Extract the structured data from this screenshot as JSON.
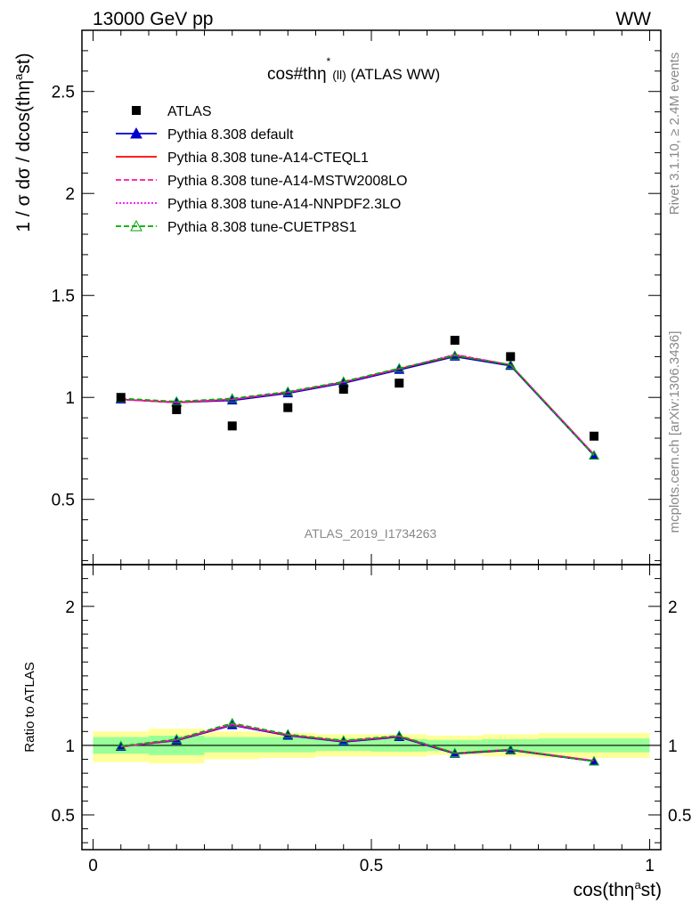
{
  "header": {
    "left": "13000 GeV pp",
    "right": "WW"
  },
  "plot_title": {
    "main": "cos#thη",
    "sup": "*",
    "sub": "(ll)",
    "rest": " (ATLAS WW)"
  },
  "side_label_top": "Rivet 3.1.10, ≥ 2.4M events",
  "side_label_bottom": "mcplots.cern.ch [arXiv:1306.3436]",
  "watermark": "ATLAS_2019_I1734263",
  "chart_data": [
    {
      "type": "line",
      "ylabel": "1 / σ dσ / dcos(thη^ast)",
      "ylim": [
        0.18,
        2.8
      ],
      "yticks": [
        0.5,
        1,
        1.5,
        2,
        2.5
      ],
      "ytick_labels": [
        "0.5",
        "1",
        "1.5",
        "2",
        "2.5"
      ],
      "x": [
        0.05,
        0.15,
        0.25,
        0.35,
        0.45,
        0.55,
        0.65,
        0.75,
        0.9
      ],
      "data": {
        "name": "ATLAS",
        "values": [
          1.0,
          0.94,
          0.86,
          0.95,
          1.04,
          1.07,
          1.28,
          1.2,
          0.81
        ]
      },
      "series": [
        {
          "name": "Pythia 8.308 default",
          "color": "#0000cc",
          "style": "solid",
          "marker": "triangle",
          "values": [
            0.99,
            0.975,
            0.985,
            1.02,
            1.07,
            1.135,
            1.2,
            1.155,
            0.715
          ]
        },
        {
          "name": "Pythia 8.308 tune-A14-CTEQL1",
          "color": "#ff0000",
          "style": "solid",
          "marker": "none",
          "values": [
            0.99,
            0.975,
            0.99,
            1.025,
            1.075,
            1.14,
            1.205,
            1.16,
            0.72
          ]
        },
        {
          "name": "Pythia 8.308 tune-A14-MSTW2008LO",
          "color": "#ff1493",
          "style": "dashed",
          "marker": "none",
          "values": [
            0.99,
            0.975,
            0.99,
            1.025,
            1.075,
            1.14,
            1.21,
            1.16,
            0.72
          ]
        },
        {
          "name": "Pythia 8.308 tune-A14-NNPDF2.3LO",
          "color": "#ff00ff",
          "style": "dotted",
          "marker": "none",
          "values": [
            0.99,
            0.978,
            0.99,
            1.025,
            1.075,
            1.14,
            1.21,
            1.16,
            0.72
          ]
        },
        {
          "name": "Pythia 8.308 tune-CUETP8S1",
          "color": "#00aa00",
          "style": "dashed",
          "marker": "open-triangle",
          "values": [
            0.995,
            0.98,
            0.995,
            1.028,
            1.078,
            1.143,
            1.205,
            1.16,
            0.715
          ]
        }
      ],
      "legend": "top-left"
    },
    {
      "type": "line",
      "xlabel": "cos(thη^ast)",
      "ylabel": "Ratio to ATLAS",
      "xlim": [
        -0.02,
        1.02
      ],
      "ylim": [
        0.25,
        2.3
      ],
      "xticks": [
        0,
        0.5,
        1
      ],
      "xtick_labels": [
        "0",
        "0.5",
        "1"
      ],
      "yticks": [
        0.5,
        1,
        2
      ],
      "ytick_labels": [
        "0.5",
        "1",
        "2"
      ],
      "bin_edges": [
        0,
        0.1,
        0.2,
        0.3,
        0.4,
        0.5,
        0.6,
        0.7,
        0.8,
        1.0
      ],
      "band_inner": [
        [
          0.94,
          1.06
        ],
        [
          0.93,
          1.07
        ],
        [
          0.95,
          1.06
        ],
        [
          0.95,
          1.06
        ],
        [
          0.96,
          1.05
        ],
        [
          0.955,
          1.045
        ],
        [
          0.96,
          1.04
        ],
        [
          0.955,
          1.045
        ],
        [
          0.95,
          1.05
        ]
      ],
      "band_outer": [
        [
          0.88,
          1.1
        ],
        [
          0.87,
          1.12
        ],
        [
          0.9,
          1.1
        ],
        [
          0.91,
          1.09
        ],
        [
          0.92,
          1.08
        ],
        [
          0.92,
          1.08
        ],
        [
          0.93,
          1.07
        ],
        [
          0.92,
          1.08
        ],
        [
          0.91,
          1.09
        ]
      ],
      "ratio_series": [
        {
          "name": "Pythia 8.308 default",
          "values": [
            0.99,
            1.035,
            1.145,
            1.07,
            1.025,
            1.06,
            0.94,
            0.965,
            0.885
          ]
        },
        {
          "name": "Pythia 8.308 tune-A14-CTEQL1",
          "values": [
            0.99,
            1.04,
            1.15,
            1.075,
            1.03,
            1.065,
            0.945,
            0.97,
            0.89
          ]
        },
        {
          "name": "Pythia 8.308 tune-A14-MSTW2008LO",
          "values": [
            0.99,
            1.04,
            1.15,
            1.075,
            1.03,
            1.065,
            0.945,
            0.97,
            0.89
          ]
        },
        {
          "name": "Pythia 8.308 tune-A14-NNPDF2.3LO",
          "values": [
            0.99,
            1.04,
            1.15,
            1.075,
            1.03,
            1.065,
            0.945,
            0.97,
            0.89
          ]
        },
        {
          "name": "Pythia 8.308 tune-CUETP8S1",
          "values": [
            0.995,
            1.045,
            1.16,
            1.08,
            1.035,
            1.07,
            0.945,
            0.97,
            0.885
          ]
        }
      ]
    }
  ]
}
